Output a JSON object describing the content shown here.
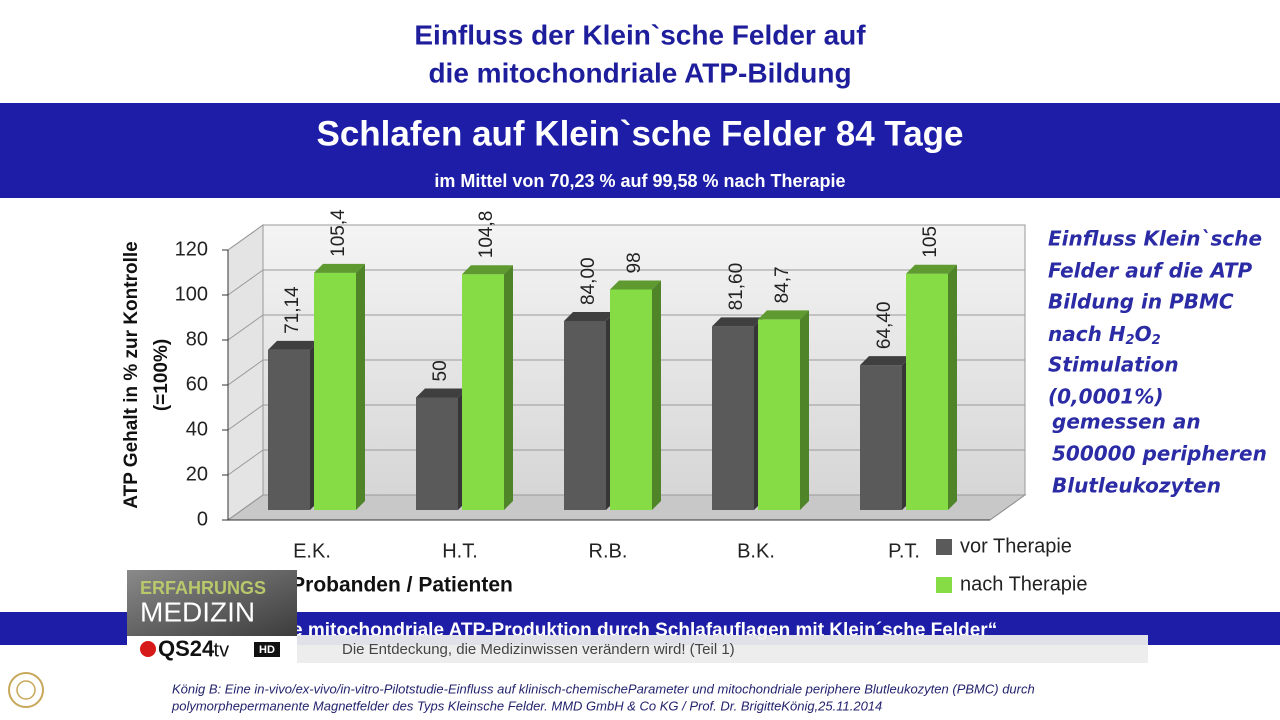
{
  "header": {
    "title_lines": [
      "Einfluss der Klein`sche Felder auf",
      "die mitochondriale ATP-Bildung"
    ],
    "banner": "Schlafen auf Klein`sche Felder 84 Tage",
    "subtitle": "im Mittel von 70,23 % auf 99,58 % nach Therapie"
  },
  "chart_data": {
    "type": "bar3d",
    "categories": [
      "E.K.",
      "H.T.",
      "R.B.",
      "B.K.",
      "P.T."
    ],
    "series": [
      {
        "name": "vor Therapie",
        "color": "#5a5a5a",
        "values": [
          71.14,
          50,
          84.0,
          81.6,
          64.4
        ],
        "value_labels": [
          "71,14",
          "50",
          "84,00",
          "81,60",
          "64,40"
        ]
      },
      {
        "name": "nach Therapie",
        "color": "#86dc44",
        "values": [
          105.4,
          104.8,
          98,
          84.7,
          105
        ],
        "value_labels": [
          "105,4",
          "104,8",
          "98",
          "84,7",
          "105"
        ]
      }
    ],
    "ylabel_lines": [
      "ATP Gehalt in % zur Kontrolle",
      "(=100%)"
    ],
    "xlabel": "Probanden / Patienten",
    "ylim": [
      0,
      120
    ],
    "yticks": [
      0,
      20,
      40,
      60,
      80,
      100,
      120
    ],
    "grid": true
  },
  "side_note": {
    "lines_before": [
      "Einfluss Klein`sche",
      "Felder auf die ATP",
      "Bildung in PBMC"
    ],
    "formula": [
      "nach H",
      "2",
      "O",
      "2"
    ],
    "lines_after": [
      "Stimulation",
      "(0,0001%)",
      "gemessen an",
      "500000 peripheren",
      "Blutleukozyten"
    ]
  },
  "overlay": {
    "ticker": "Gesteigerte mitochondriale ATP-Produktion durch Schlafauflagen mit Klein´sche Felder“",
    "logo": {
      "line1": "ERFAHRUNGS",
      "line2": "MEDIZIN",
      "brand": "QS24",
      "domain": ".tv",
      "badge": "HD"
    },
    "caption": "Die Entdeckung, die Medizinwissen verändern wird! (Teil 1)"
  },
  "footnote": [
    "König B: Eine in-vivo/ex-vivo/in-vitro-Pilotstudie-Einfluss auf klinisch-chemischeParameter und mitochondriale periphere Blutleukozyten (PBMC) durch",
    "polymorphepermanente Magnetfelder des Typs Kleinsche Felder. MMD GmbH & Co KG / Prof. Dr. BrigitteKönig,25.11.2014"
  ]
}
